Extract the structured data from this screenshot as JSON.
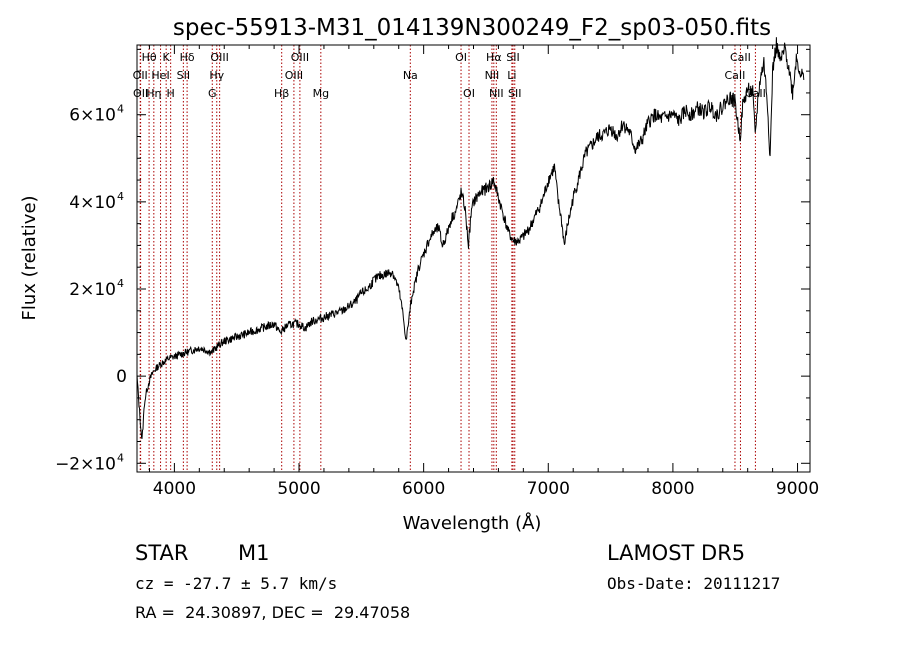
{
  "chart_data": {
    "type": "line",
    "title": "spec-55913-M31_014139N300249_F2_sp03-050.fits",
    "xlabel": "Wavelength (Å)",
    "ylabel": "Flux (relative)",
    "xlim": [
      3700,
      9100
    ],
    "ylim": [
      -22000,
      76000
    ],
    "x_ticks": [
      4000,
      5000,
      6000,
      7000,
      8000,
      9000
    ],
    "x_tick_labels": [
      "4000",
      "5000",
      "6000",
      "7000",
      "8000",
      "9000"
    ],
    "y_ticks": [
      {
        "value": -20000,
        "mant": "−2×10",
        "exp": "4"
      },
      {
        "value": 0,
        "mant": "0",
        "exp": ""
      },
      {
        "value": 20000,
        "mant": "2×10",
        "exp": "4"
      },
      {
        "value": 40000,
        "mant": "4×10",
        "exp": "4"
      },
      {
        "value": 60000,
        "mant": "6×10",
        "exp": "4"
      }
    ],
    "line_color": "#000000",
    "marker_color": "#aa0000",
    "spectrum": {
      "x": [
        3700,
        3720,
        3740,
        3760,
        3780,
        3800,
        3830,
        3860,
        3900,
        3950,
        4000,
        4050,
        4100,
        4150,
        4200,
        4250,
        4300,
        4350,
        4400,
        4450,
        4500,
        4550,
        4600,
        4650,
        4700,
        4750,
        4800,
        4850,
        4900,
        4950,
        5000,
        5050,
        5100,
        5150,
        5200,
        5250,
        5300,
        5350,
        5400,
        5450,
        5500,
        5550,
        5600,
        5650,
        5700,
        5750,
        5800,
        5830,
        5860,
        5890,
        5910,
        5930,
        5960,
        6000,
        6040,
        6080,
        6120,
        6150,
        6180,
        6220,
        6260,
        6300,
        6330,
        6360,
        6380,
        6400,
        6450,
        6500,
        6540,
        6560,
        6580,
        6600,
        6640,
        6680,
        6720,
        6760,
        6800,
        6850,
        6900,
        6950,
        7000,
        7050,
        7080,
        7100,
        7130,
        7150,
        7180,
        7200,
        7250,
        7300,
        7350,
        7400,
        7450,
        7500,
        7550,
        7600,
        7650,
        7700,
        7750,
        7800,
        7850,
        7900,
        7950,
        8000,
        8050,
        8100,
        8150,
        8200,
        8250,
        8300,
        8350,
        8400,
        8450,
        8500,
        8520,
        8540,
        8560,
        8600,
        8640,
        8660,
        8680,
        8700,
        8730,
        8760,
        8780,
        8800,
        8830,
        8860,
        8900,
        8930,
        8960,
        8990,
        9020,
        9050
      ],
      "y": [
        0,
        -8000,
        -15000,
        -6000,
        -3000,
        -1000,
        1000,
        2000,
        3000,
        4000,
        4500,
        5000,
        5500,
        6000,
        6500,
        6000,
        5500,
        7000,
        8000,
        8500,
        9000,
        9500,
        10000,
        10500,
        11000,
        11500,
        12000,
        10000,
        11500,
        12000,
        12000,
        11000,
        12500,
        13000,
        13500,
        14000,
        14500,
        15000,
        16000,
        17000,
        19000,
        20000,
        22000,
        23000,
        23500,
        24000,
        20000,
        15000,
        8000,
        15000,
        19000,
        21000,
        25000,
        28000,
        31000,
        33000,
        34000,
        30000,
        32000,
        36000,
        38000,
        42000,
        39000,
        30000,
        37000,
        40000,
        42000,
        43000,
        44000,
        45000,
        43000,
        41000,
        37000,
        33000,
        31000,
        31000,
        32000,
        34000,
        37000,
        40000,
        45000,
        48000,
        40000,
        37000,
        30000,
        34000,
        38000,
        41000,
        46000,
        51000,
        53000,
        55000,
        55500,
        57000,
        55000,
        58000,
        56000,
        52000,
        54000,
        58000,
        60000,
        59000,
        59500,
        60000,
        58500,
        61000,
        60000,
        61500,
        60500,
        62000,
        60000,
        62000,
        64000,
        63000,
        58000,
        55000,
        62000,
        66000,
        65000,
        55000,
        63000,
        68000,
        72000,
        62000,
        50000,
        70000,
        76000,
        72000,
        75000,
        71000,
        65000,
        73000,
        70000,
        68000
      ]
    },
    "lines": [
      {
        "w": 3797,
        "row": 0,
        "label": "Hθ"
      },
      {
        "w": 3726,
        "row": 1,
        "label": "OII"
      },
      {
        "w": 3729,
        "row": 2,
        "label": "OII"
      },
      {
        "w": 3835,
        "row": 2,
        "label": "Hη"
      },
      {
        "w": 3934,
        "row": 0,
        "label": "K"
      },
      {
        "w": 3889,
        "row": 1,
        "label": "HeI"
      },
      {
        "w": 3970,
        "row": 2,
        "label": "H"
      },
      {
        "w": 4102,
        "row": 0,
        "label": "Hδ"
      },
      {
        "w": 4072,
        "row": 1,
        "label": "SII"
      },
      {
        "w": 4363,
        "row": 0,
        "label": "OIII"
      },
      {
        "w": 4340,
        "row": 1,
        "label": "Hγ"
      },
      {
        "w": 4304,
        "row": 2,
        "label": "G"
      },
      {
        "w": 5007,
        "row": 0,
        "label": "OIII"
      },
      {
        "w": 4959,
        "row": 1,
        "label": "OIII"
      },
      {
        "w": 4861,
        "row": 2,
        "label": "Hβ"
      },
      {
        "w": 5175,
        "row": 2,
        "label": "Mg"
      },
      {
        "w": 5893,
        "row": 1,
        "label": "Na"
      },
      {
        "w": 6300,
        "row": 0,
        "label": "OI"
      },
      {
        "w": 6364,
        "row": 2,
        "label": "OI"
      },
      {
        "w": 6563,
        "row": 0,
        "label": "Hα"
      },
      {
        "w": 6548,
        "row": 1,
        "label": "NII"
      },
      {
        "w": 6583,
        "row": 2,
        "label": "NII"
      },
      {
        "w": 6717,
        "row": 0,
        "label": "SII"
      },
      {
        "w": 6708,
        "row": 1,
        "label": "Li"
      },
      {
        "w": 6731,
        "row": 2,
        "label": "SII"
      },
      {
        "w": 8542,
        "row": 0,
        "label": "CaII"
      },
      {
        "w": 8498,
        "row": 1,
        "label": "CaII"
      },
      {
        "w": 8662,
        "row": 2,
        "label": "CaII"
      }
    ]
  },
  "info": {
    "object_class": "STAR",
    "subclass": "M1",
    "cz": "cz = -27.7 ± 5.7 km/s",
    "coords": "RA =  24.30897, DEC =  29.47058",
    "survey": "LAMOST DR5",
    "obs_date": "Obs-Date: 20111217"
  }
}
